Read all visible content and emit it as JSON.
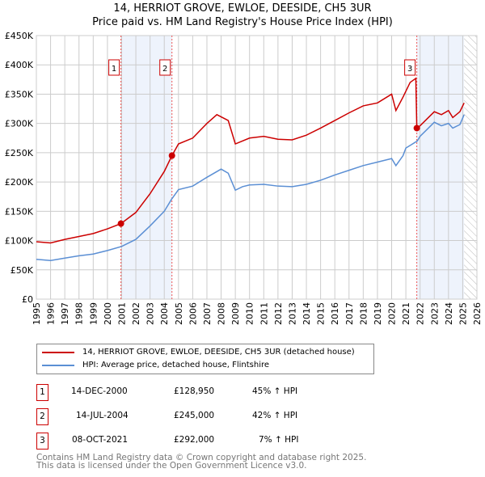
{
  "chart_data": {
    "type": "line",
    "title": "14, HERRIOT GROVE, EWLOE, DEESIDE, CH5 3UR",
    "subtitle": "Price paid vs. HM Land Registry's House Price Index (HPI)",
    "xlim": [
      1995,
      2026
    ],
    "ylim": [
      0,
      450000
    ],
    "x_ticks": [
      "1995",
      "1996",
      "1997",
      "1998",
      "1999",
      "2000",
      "2001",
      "2002",
      "2003",
      "2004",
      "2005",
      "2006",
      "2007",
      "2008",
      "2009",
      "2010",
      "2011",
      "2012",
      "2013",
      "2014",
      "2015",
      "2016",
      "2017",
      "2018",
      "2019",
      "2020",
      "2021",
      "2022",
      "2023",
      "2024",
      "2025",
      "2026"
    ],
    "y_ticks": [
      {
        "v": 0,
        "l": "£0"
      },
      {
        "v": 50000,
        "l": "£50K"
      },
      {
        "v": 100000,
        "l": "£100K"
      },
      {
        "v": 150000,
        "l": "£150K"
      },
      {
        "v": 200000,
        "l": "£200K"
      },
      {
        "v": 250000,
        "l": "£250K"
      },
      {
        "v": 300000,
        "l": "£300K"
      },
      {
        "v": 350000,
        "l": "£350K"
      },
      {
        "v": 400000,
        "l": "£400K"
      },
      {
        "v": 450000,
        "l": "£450K"
      }
    ],
    "grid": true,
    "series": [
      {
        "name": "14, HERRIOT GROVE, EWLOE, DEESIDE, CH5 3UR (detached house)",
        "color": "#cc0000",
        "points": [
          [
            1995,
            98000
          ],
          [
            1996,
            96000
          ],
          [
            1997,
            102000
          ],
          [
            1998,
            107000
          ],
          [
            1999,
            112000
          ],
          [
            2000,
            120000
          ],
          [
            2000.95,
            128950
          ],
          [
            2002,
            148000
          ],
          [
            2003,
            180000
          ],
          [
            2004,
            218000
          ],
          [
            2004.54,
            245000
          ],
          [
            2005,
            265000
          ],
          [
            2006,
            275000
          ],
          [
            2007,
            300000
          ],
          [
            2007.7,
            315000
          ],
          [
            2008.5,
            305000
          ],
          [
            2009,
            265000
          ],
          [
            2010,
            275000
          ],
          [
            2011,
            278000
          ],
          [
            2012,
            273000
          ],
          [
            2013,
            272000
          ],
          [
            2014,
            280000
          ],
          [
            2015,
            292000
          ],
          [
            2016,
            305000
          ],
          [
            2017,
            318000
          ],
          [
            2018,
            330000
          ],
          [
            2019,
            335000
          ],
          [
            2020,
            350000
          ],
          [
            2020.3,
            322000
          ],
          [
            2020.8,
            345000
          ],
          [
            2021.3,
            370000
          ],
          [
            2021.7,
            377000
          ],
          [
            2021.77,
            292000
          ],
          [
            2022,
            296000
          ],
          [
            2023,
            320000
          ],
          [
            2023.5,
            315000
          ],
          [
            2024,
            322000
          ],
          [
            2024.3,
            310000
          ],
          [
            2024.8,
            320000
          ],
          [
            2025.1,
            335000
          ]
        ]
      },
      {
        "name": "HPI: Average price, detached house, Flintshire",
        "color": "#5b8fd4",
        "points": [
          [
            1995,
            68000
          ],
          [
            1996,
            66000
          ],
          [
            1997,
            70000
          ],
          [
            1998,
            74000
          ],
          [
            1999,
            77000
          ],
          [
            2000,
            83000
          ],
          [
            2001,
            90000
          ],
          [
            2002,
            102000
          ],
          [
            2003,
            125000
          ],
          [
            2004,
            150000
          ],
          [
            2004.5,
            170000
          ],
          [
            2005,
            187000
          ],
          [
            2006,
            193000
          ],
          [
            2007,
            208000
          ],
          [
            2008,
            222000
          ],
          [
            2008.5,
            215000
          ],
          [
            2009,
            186000
          ],
          [
            2009.5,
            192000
          ],
          [
            2010,
            195000
          ],
          [
            2011,
            196000
          ],
          [
            2012,
            193000
          ],
          [
            2013,
            192000
          ],
          [
            2014,
            196000
          ],
          [
            2015,
            203000
          ],
          [
            2016,
            212000
          ],
          [
            2017,
            220000
          ],
          [
            2018,
            228000
          ],
          [
            2019,
            234000
          ],
          [
            2020,
            240000
          ],
          [
            2020.3,
            228000
          ],
          [
            2020.8,
            245000
          ],
          [
            2021,
            258000
          ],
          [
            2021.8,
            270000
          ],
          [
            2022,
            278000
          ],
          [
            2022.5,
            290000
          ],
          [
            2023,
            302000
          ],
          [
            2023.5,
            296000
          ],
          [
            2024,
            300000
          ],
          [
            2024.3,
            292000
          ],
          [
            2024.8,
            298000
          ],
          [
            2025.1,
            315000
          ]
        ]
      }
    ],
    "sales": [
      {
        "n": "1",
        "x": 2000.95,
        "y": 128950,
        "date": "14-DEC-2000",
        "price": "£128,950",
        "hpi": "45% ↑ HPI"
      },
      {
        "n": "2",
        "x": 2004.54,
        "y": 245000,
        "date": "14-JUL-2004",
        "price": "£245,000",
        "hpi": "42% ↑ HPI"
      },
      {
        "n": "3",
        "x": 2021.77,
        "y": 292000,
        "date": "08-OCT-2021",
        "price": "£292,000",
        "hpi": "7% ↑ HPI"
      }
    ],
    "shaded": [
      [
        2000.95,
        2004.54
      ],
      [
        2021.77,
        2025.1
      ]
    ],
    "forecast_from": 2025.1
  },
  "footer": [
    "Contains HM Land Registry data © Crown copyright and database right 2025.",
    "This data is licensed under the Open Government Licence v3.0."
  ]
}
